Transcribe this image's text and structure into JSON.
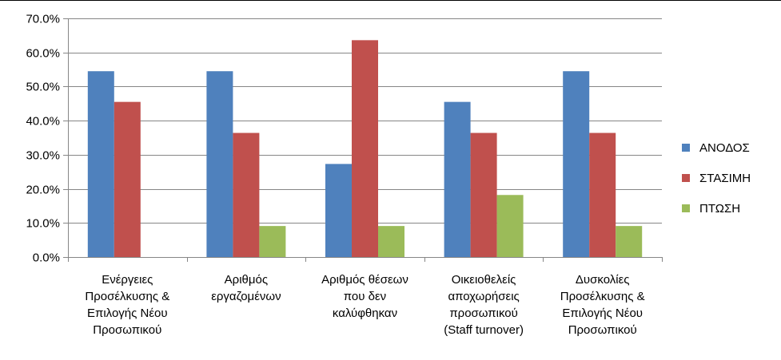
{
  "chart_data": {
    "type": "bar",
    "title": "",
    "xlabel": "",
    "ylabel": "",
    "ylim": [
      0,
      70
    ],
    "yticks": [
      "0.0%",
      "10.0%",
      "20.0%",
      "30.0%",
      "40.0%",
      "50.0%",
      "60.0%",
      "70.0%"
    ],
    "grid": true,
    "legend_position": "right",
    "categories": [
      [
        "Ενέργειες",
        "Προσέλκυσης &",
        "Επιλογής Νέου",
        "Προσωπικού"
      ],
      [
        "Αριθμός",
        "εργαζομένων"
      ],
      [
        "Αριθμός θέσεων",
        "που δεν",
        "καλύφθηκαν"
      ],
      [
        "Οικειοθελείς",
        "αποχωρήσεις",
        "προσωπικού",
        "(Staff turnover)"
      ],
      [
        "Δυσκολίες",
        "Προσέλκυσης &",
        "Επιλογής Νέου",
        "Προσωπικού"
      ]
    ],
    "series": [
      {
        "name": "ΑΝΟΔΟΣ",
        "color": "#4f81bd",
        "values": [
          54.5,
          54.5,
          27.3,
          45.5,
          54.5
        ]
      },
      {
        "name": "ΣΤΑΣΙΜΗ",
        "color": "#c0504d",
        "values": [
          45.5,
          36.4,
          63.6,
          36.4,
          36.4
        ]
      },
      {
        "name": "ΠΤΩΣΗ",
        "color": "#9bbb59",
        "values": [
          0,
          9.1,
          9.1,
          18.2,
          9.1
        ]
      }
    ]
  }
}
